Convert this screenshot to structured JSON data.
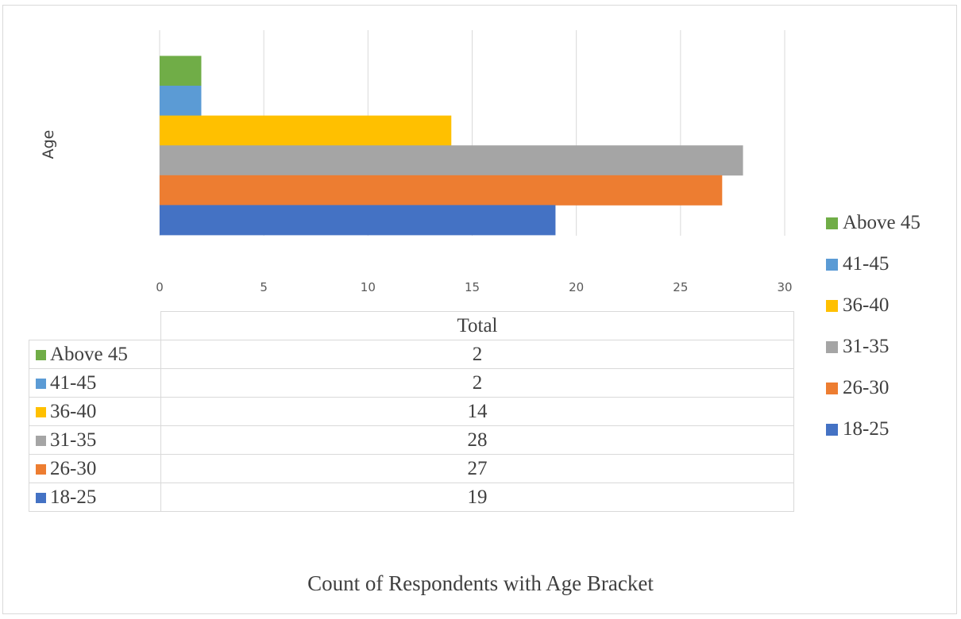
{
  "chart_data": {
    "type": "bar",
    "orientation": "horizontal",
    "ylabel": "Age",
    "xlim": [
      0,
      30
    ],
    "xticks": [
      0,
      5,
      10,
      15,
      20,
      25,
      30
    ],
    "grid": true,
    "legend_placement": "right",
    "series": [
      {
        "name": "Above 45",
        "values": [
          2
        ],
        "color": "#70ad47"
      },
      {
        "name": "41-45",
        "values": [
          2
        ],
        "color": "#5b9bd5"
      },
      {
        "name": "36-40",
        "values": [
          14
        ],
        "color": "#ffc000"
      },
      {
        "name": "31-35",
        "values": [
          28
        ],
        "color": "#a5a5a5"
      },
      {
        "name": "26-30",
        "values": [
          27
        ],
        "color": "#ed7d31"
      },
      {
        "name": "18-25",
        "values": [
          19
        ],
        "color": "#4472c4"
      }
    ]
  },
  "table": {
    "column_header": "Total",
    "rows": [
      {
        "label": "Above 45",
        "value": "2",
        "color": "#70ad47"
      },
      {
        "label": "41-45",
        "value": "2",
        "color": "#5b9bd5"
      },
      {
        "label": "36-40",
        "value": "14",
        "color": "#ffc000"
      },
      {
        "label": "31-35",
        "value": "28",
        "color": "#a5a5a5"
      },
      {
        "label": "26-30",
        "value": "27",
        "color": "#ed7d31"
      },
      {
        "label": "18-25",
        "value": "19",
        "color": "#4472c4"
      }
    ]
  },
  "caption": "Count of Respondents with Age Bracket"
}
